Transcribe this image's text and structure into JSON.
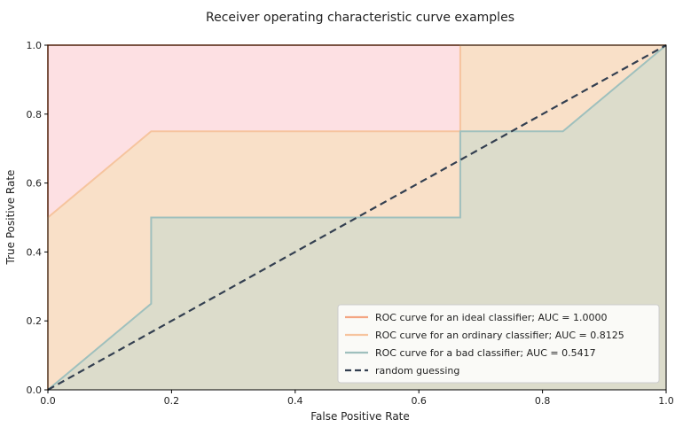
{
  "chart_data": {
    "type": "area",
    "title": "Receiver operating characteristic curve examples",
    "xlabel": "False Positive Rate",
    "ylabel": "True Positive Rate",
    "xlim": [
      0,
      1
    ],
    "ylim": [
      0,
      1
    ],
    "xticks": [
      "0.0",
      "0.2",
      "0.4",
      "0.6",
      "0.8",
      "1.0"
    ],
    "yticks": [
      "0.0",
      "0.2",
      "0.4",
      "0.6",
      "0.8",
      "1.0"
    ],
    "grid": false,
    "legend_position": "lower-right",
    "series": [
      {
        "name": "ROC curve for an ideal classifier; AUC = 1.0000",
        "color": "#f4a582",
        "fill": "#fde0e3",
        "x": [
          0,
          0,
          0.667,
          0.667,
          1
        ],
        "y": [
          0,
          1,
          1,
          1,
          1
        ]
      },
      {
        "name": "ROC curve for an ordinary classifier; AUC = 0.8125",
        "color": "#f6c49e",
        "fill": "#f9e0c8",
        "x": [
          0,
          0,
          0.167,
          0.667,
          0.667,
          1
        ],
        "y": [
          0,
          0.5,
          0.75,
          0.75,
          1,
          1
        ]
      },
      {
        "name": "ROC curve for a bad classifier; AUC = 0.5417",
        "color": "#9fc0bd",
        "fill": "#dcdccb",
        "x": [
          0,
          0.167,
          0.167,
          0.667,
          0.667,
          0.833,
          1
        ],
        "y": [
          0,
          0.25,
          0.5,
          0.5,
          0.75,
          0.75,
          1
        ]
      },
      {
        "name": "random guessing",
        "color": "#333f50",
        "dashed": true,
        "x": [
          0,
          1
        ],
        "y": [
          0,
          1
        ]
      }
    ]
  }
}
